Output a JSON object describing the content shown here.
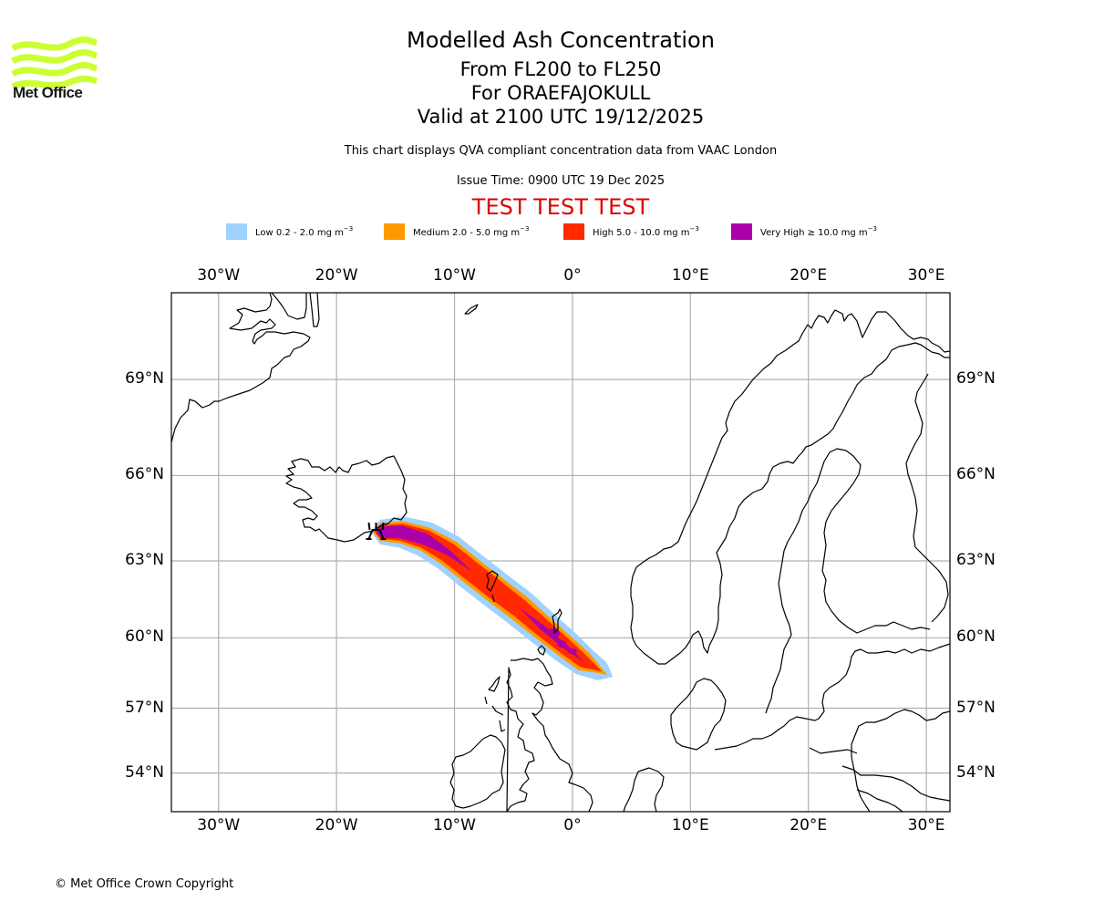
{
  "logo": {
    "text": "Met Office",
    "color": "#ccff33"
  },
  "title": {
    "main": "Modelled Ash Concentration",
    "levels": "From FL200 to FL250",
    "volcano": "For ORAEFAJOKULL",
    "valid": "Valid at 2100 UTC 19/12/2025"
  },
  "subtitle": "This chart displays QVA compliant concentration data from VAAC London",
  "issue_time": "Issue Time: 0900 UTC 19 Dec 2025",
  "test_banner": "TEST TEST TEST",
  "legend": [
    {
      "label": "Low 0.2 - 2.0 mg m",
      "unit_exp": "−3",
      "color": "#a0d2ff"
    },
    {
      "label": "Medium 2.0 - 5.0 mg m",
      "unit_exp": "−3",
      "color": "#ff9900"
    },
    {
      "label": "High 5.0 - 10.0 mg m",
      "unit_exp": "−3",
      "color": "#ff2a00"
    },
    {
      "label": "Very High  ≥  10.0 mg m",
      "unit_exp": "−3",
      "color": "#aa00aa"
    }
  ],
  "footer": {
    "copyright": "© Met Office Crown Copyright"
  },
  "chart_data": {
    "type": "heatmap",
    "title": "Modelled Ash Concentration",
    "projection": "mercator",
    "lon_range": [
      -34,
      32
    ],
    "lat_range": [
      52.1,
      71.4
    ],
    "grid": true,
    "x_ticks": [
      "30°W",
      "20°W",
      "10°W",
      "0°",
      "10°E",
      "20°E",
      "30°E"
    ],
    "x_tick_values": [
      -30,
      -20,
      -10,
      0,
      10,
      20,
      30
    ],
    "y_ticks": [
      "69°N",
      "66°N",
      "63°N",
      "60°N",
      "57°N",
      "54°N"
    ],
    "y_tick_values": [
      69,
      66,
      63,
      60,
      57,
      54
    ],
    "source_volcano": {
      "name": "ORAEFAJOKULL",
      "lon": -16.65,
      "lat": 64.0
    },
    "plume_centerline_lonlat": [
      [
        -16.3,
        64.05
      ],
      [
        -14.5,
        64.05
      ],
      [
        -12.5,
        63.8
      ],
      [
        -10.5,
        63.3
      ],
      [
        -8.5,
        62.6
      ],
      [
        -6.5,
        61.9
      ],
      [
        -4.5,
        61.2
      ],
      [
        -2.5,
        60.4
      ],
      [
        -0.5,
        59.6
      ],
      [
        1.0,
        59.0
      ],
      [
        2.5,
        58.6
      ]
    ],
    "bands": [
      {
        "level": "Low",
        "min": 0.2,
        "max": 2.0,
        "half_width_deg": [
          0.55,
          0.7,
          0.8,
          0.85,
          0.85,
          0.85,
          0.85,
          0.8,
          0.75,
          0.65,
          0.45
        ]
      },
      {
        "level": "Medium",
        "min": 2.0,
        "max": 5.0,
        "half_width_deg": [
          0.4,
          0.5,
          0.55,
          0.6,
          0.6,
          0.6,
          0.6,
          0.55,
          0.5,
          0.45,
          0.1
        ]
      },
      {
        "level": "High",
        "min": 5.0,
        "max": 10.0,
        "half_width_deg": [
          0.3,
          0.38,
          0.42,
          0.45,
          0.45,
          0.45,
          0.42,
          0.4,
          0.35,
          0.28,
          0.0
        ]
      },
      {
        "level": "Very High",
        "min": 10.0,
        "max": null,
        "half_width_deg": [
          0.25,
          0.28,
          0.26,
          0.12,
          0.0,
          0.0,
          0.0,
          0.12,
          0.1,
          0.0,
          0.0
        ]
      }
    ]
  }
}
